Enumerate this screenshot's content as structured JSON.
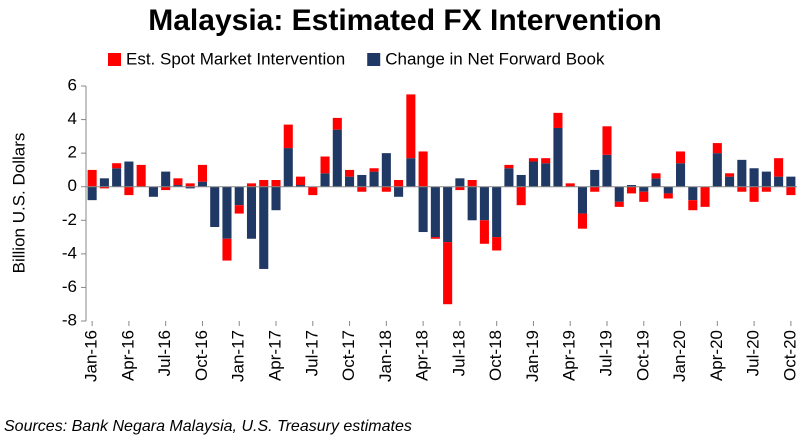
{
  "chart_data": {
    "type": "bar",
    "stacked": true,
    "title": "Malaysia: Estimated FX Intervention",
    "y_label": "Billion U.S. Dollars",
    "source": "Sources: Bank Negara Malaysia, U.S. Treasury estimates",
    "categories": [
      "Jan-16",
      null,
      null,
      "Apr-16",
      null,
      null,
      "Jul-16",
      null,
      null,
      "Oct-16",
      null,
      null,
      "Jan-17",
      null,
      null,
      "Apr-17",
      null,
      null,
      "Jul-17",
      null,
      null,
      "Oct-17",
      null,
      null,
      "Jan-18",
      null,
      null,
      "Apr-18",
      null,
      null,
      "Jul-18",
      null,
      null,
      "Oct-18",
      null,
      null,
      "Jan-19",
      null,
      null,
      "Apr-19",
      null,
      null,
      "Jul-19",
      null,
      null,
      "Oct-19",
      null,
      null,
      "Jan-20",
      null,
      null,
      "Apr-20",
      null,
      null,
      "Jul-20",
      null,
      null,
      "Oct-20"
    ],
    "series": [
      {
        "name": "Est. Spot Market Intervention",
        "color": "#ff0000",
        "values": [
          1.0,
          -0.1,
          0.3,
          -0.5,
          1.3,
          0,
          -0.2,
          0.4,
          0.2,
          1.0,
          0,
          -1.3,
          -0.5,
          0.2,
          0.4,
          0.4,
          1.4,
          0.5,
          -0.5,
          1.0,
          0.7,
          0.4,
          -0.3,
          0.2,
          -0.3,
          0.4,
          3.8,
          2.1,
          -0.1,
          -3.7,
          -0.2,
          0.4,
          -1.4,
          -0.8,
          0.2,
          -1.1,
          0.2,
          0.3,
          0.9,
          0.2,
          -0.9,
          -0.3,
          1.7,
          -0.3,
          -0.4,
          -0.6,
          0.3,
          -0.3,
          0.7,
          -0.6,
          -1.2,
          0.6,
          0.2,
          -0.3,
          -0.9,
          -0.3,
          1.1,
          -0.5
        ]
      },
      {
        "name": "Change in Net Forward Book",
        "color": "#1f3864",
        "values": [
          -0.8,
          0.5,
          1.1,
          1.5,
          0,
          -0.6,
          0.9,
          0.1,
          -0.1,
          0.3,
          -2.4,
          -3.1,
          -1.1,
          -3.1,
          -4.9,
          -1.4,
          2.3,
          0.1,
          0,
          0.8,
          3.4,
          0.6,
          0.7,
          0.9,
          2.0,
          -0.6,
          1.7,
          -2.7,
          -3.0,
          -3.3,
          0.5,
          -2.0,
          -2.0,
          -3.0,
          1.1,
          0.7,
          1.5,
          1.4,
          3.5,
          0,
          -1.6,
          1.0,
          1.9,
          -0.9,
          0.1,
          -0.3,
          0.5,
          -0.4,
          1.4,
          -0.8,
          0,
          2.0,
          0.6,
          1.6,
          1.1,
          0.9,
          0.6,
          0.6
        ]
      }
    ],
    "ylim": [
      -8,
      6
    ],
    "yticks": [
      -8,
      -6,
      -4,
      -2,
      0,
      2,
      4,
      6
    ],
    "grid": false
  }
}
